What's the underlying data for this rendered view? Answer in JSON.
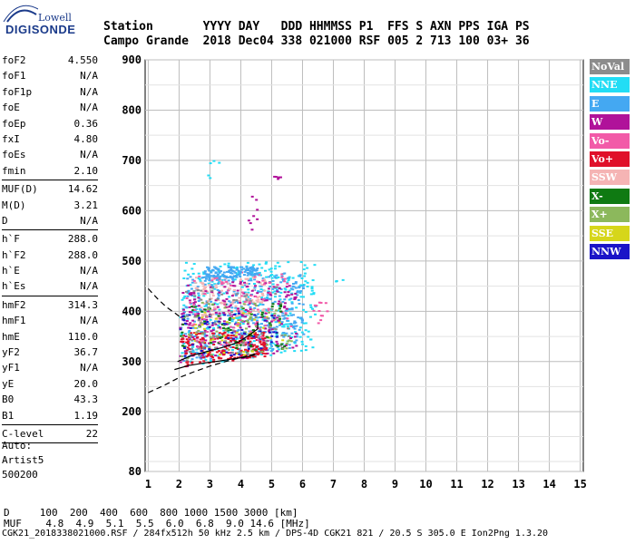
{
  "logo": {
    "top": "Lowell",
    "bottom": "DIGISONDE"
  },
  "header": {
    "row1": "Station       YYYY DAY   DDD HHMMSS P1  FFS S AXN PPS IGA PS",
    "row2": "Campo Grande  2018 Dec04 338 021000 RSF 005 2 713 100 03+ 36"
  },
  "params_group1": [
    {
      "name": "foF2",
      "value": "4.550"
    },
    {
      "name": "foF1",
      "value": "N/A"
    },
    {
      "name": "foF1p",
      "value": "N/A"
    },
    {
      "name": "foE",
      "value": "N/A"
    },
    {
      "name": "foEp",
      "value": "0.36"
    },
    {
      "name": "fxI",
      "value": "4.80"
    },
    {
      "name": "foEs",
      "value": "N/A"
    },
    {
      "name": "fmin",
      "value": "2.10"
    }
  ],
  "params_group2": [
    {
      "name": "MUF(D)",
      "value": "14.62"
    },
    {
      "name": "M(D)",
      "value": "3.21"
    },
    {
      "name": "D",
      "value": "N/A"
    }
  ],
  "params_group3": [
    {
      "name": "h`F",
      "value": "288.0"
    },
    {
      "name": "h`F2",
      "value": "288.0"
    },
    {
      "name": "h`E",
      "value": "N/A"
    },
    {
      "name": "h`Es",
      "value": "N/A"
    }
  ],
  "params_group4": [
    {
      "name": "hmF2",
      "value": "314.3"
    },
    {
      "name": "hmF1",
      "value": "N/A"
    },
    {
      "name": "hmE",
      "value": "110.0"
    },
    {
      "name": "yF2",
      "value": "36.7"
    },
    {
      "name": "yF1",
      "value": "N/A"
    },
    {
      "name": "yE",
      "value": "20.0"
    },
    {
      "name": "B0",
      "value": "43.3"
    },
    {
      "name": "B1",
      "value": "1.19"
    }
  ],
  "params_group5": [
    {
      "name": "C-level",
      "value": "22"
    }
  ],
  "auto": {
    "l1": "Auto:",
    "l2": "Artist5",
    "l3": "500200"
  },
  "legend": [
    {
      "label": "NoVal",
      "color": "#8c8c8c"
    },
    {
      "label": "NNE",
      "color": "#22ddf5"
    },
    {
      "label": "E",
      "color": "#44a8f2"
    },
    {
      "label": "W",
      "color": "#b0129a"
    },
    {
      "label": "Vo-",
      "color": "#f25aa8"
    },
    {
      "label": "Vo+",
      "color": "#e0102a"
    },
    {
      "label": "SSW",
      "color": "#f5b4b4"
    },
    {
      "label": "X-",
      "color": "#0f7a12"
    },
    {
      "label": "X+",
      "color": "#8cb85c"
    },
    {
      "label": "SSE",
      "color": "#d6d61a"
    },
    {
      "label": "NNW",
      "color": "#1a14c8"
    }
  ],
  "footer": {
    "d_line": "D     100  200  400  600  800 1000 1500 3000 [km]",
    "muf_line": "MUF    4.8  4.9  5.1  5.5  6.0  6.8  9.0 14.6 [MHz]",
    "file_line": "CGK21_2018338021000.RSF / 284fx512h 50 kHz 2.5 km / DPS-4D CGK21 821 / 20.5 S 305.0 E Ion2Png 1.3.20"
  },
  "chart_data": {
    "type": "scatter",
    "xlabel": "",
    "ylabel": "",
    "xlim": [
      0.9,
      15.1
    ],
    "ylim": [
      80,
      900
    ],
    "xticks": [
      1,
      2,
      3,
      4,
      5,
      6,
      7,
      8,
      9,
      10,
      11,
      12,
      13,
      14,
      15
    ],
    "yticks": [
      80,
      200,
      300,
      400,
      500,
      600,
      700,
      800,
      900
    ],
    "grid": true,
    "traces": [
      {
        "name": "",
        "style": "solid",
        "x": [
          1.85,
          2.3,
          2.8,
          3.3,
          3.8,
          4.2,
          4.45
        ],
        "y": [
          284,
          292,
          297,
          301,
          306,
          309,
          313
        ]
      },
      {
        "name": "",
        "style": "solid",
        "x": [
          1.95,
          2.4,
          2.9,
          3.4,
          3.9,
          4.3,
          4.55,
          4.55
        ],
        "y": [
          300,
          312,
          320,
          328,
          338,
          354,
          365,
          378
        ]
      },
      {
        "name": "",
        "style": "dashed",
        "x": [
          1.0,
          1.5,
          2.0,
          2.5,
          3.0,
          3.5,
          4.0,
          4.5
        ],
        "y": [
          238,
          252,
          268,
          280,
          291,
          300,
          308,
          316
        ]
      },
      {
        "name": "",
        "style": "dashed",
        "x": [
          1.0,
          1.3,
          1.6,
          1.9,
          2.1
        ],
        "y": [
          445,
          425,
          408,
          395,
          385
        ]
      }
    ],
    "clusters": [
      {
        "color": "#22ddf5",
        "x": [
          2.0,
          6.4
        ],
        "y": [
          290,
          500
        ],
        "n": 380
      },
      {
        "color": "#44a8f2",
        "x": [
          2.1,
          6.0
        ],
        "y": [
          300,
          480
        ],
        "n": 360
      },
      {
        "color": "#f5b4b4",
        "x": [
          2.4,
          4.8
        ],
        "y": [
          380,
          470
        ],
        "n": 140
      },
      {
        "color": "#b0129a",
        "x": [
          2.0,
          5.8
        ],
        "y": [
          290,
          460
        ],
        "n": 220
      },
      {
        "color": "#e0102a",
        "x": [
          2.0,
          4.8
        ],
        "y": [
          290,
          360
        ],
        "n": 200
      },
      {
        "color": "#0f7a12",
        "x": [
          2.0,
          5.4
        ],
        "y": [
          300,
          420
        ],
        "n": 70
      },
      {
        "color": "#8cb85c",
        "x": [
          2.0,
          5.6
        ],
        "y": [
          300,
          420
        ],
        "n": 60
      },
      {
        "color": "#d6d61a",
        "x": [
          2.2,
          5.4
        ],
        "y": [
          300,
          400
        ],
        "n": 40
      },
      {
        "color": "#1a14c8",
        "x": [
          2.0,
          5.2
        ],
        "y": [
          300,
          400
        ],
        "n": 60
      },
      {
        "color": "#8c8c8c",
        "x": [
          2.0,
          5.6
        ],
        "y": [
          300,
          450
        ],
        "n": 70
      },
      {
        "color": "#f25aa8",
        "x": [
          2.2,
          5.6
        ],
        "y": [
          320,
          480
        ],
        "n": 80
      },
      {
        "color": "#44a8f2",
        "x": [
          2.7,
          4.5
        ],
        "y": [
          460,
          490
        ],
        "n": 120
      },
      {
        "color": "#b0129a",
        "x": [
          4.1,
          4.5
        ],
        "y": [
          560,
          640
        ],
        "n": 8
      },
      {
        "color": "#b0129a",
        "x": [
          4.9,
          5.3
        ],
        "y": [
          660,
          672
        ],
        "n": 6
      },
      {
        "color": "#22ddf5",
        "x": [
          2.9,
          3.3
        ],
        "y": [
          650,
          720
        ],
        "n": 5
      },
      {
        "color": "#f25aa8",
        "x": [
          6.3,
          6.8
        ],
        "y": [
          370,
          420
        ],
        "n": 12
      },
      {
        "color": "#22ddf5",
        "x": [
          7.0,
          7.3
        ],
        "y": [
          455,
          465
        ],
        "n": 3
      }
    ]
  }
}
